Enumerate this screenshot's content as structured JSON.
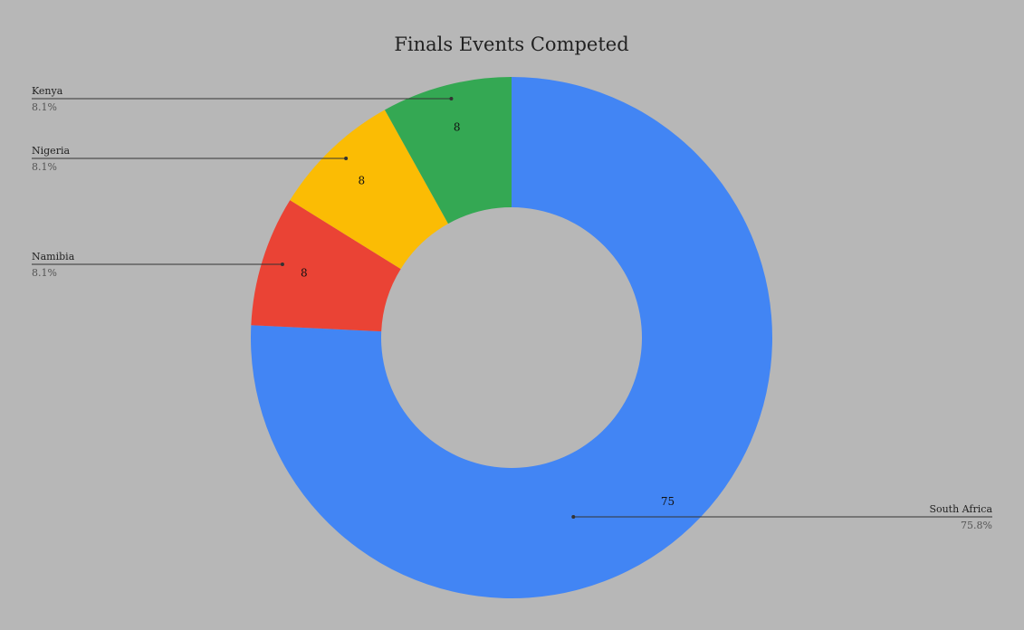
{
  "chart_data": {
    "type": "pie",
    "donut": true,
    "title": "Finals Events Competed",
    "categories": [
      "South Africa",
      "Namibia",
      "Nigeria",
      "Kenya"
    ],
    "values": [
      75,
      8,
      8,
      8
    ],
    "percent_labels": [
      "75.8%",
      "8.1%",
      "8.1%",
      "8.1%"
    ],
    "colors": [
      "#4285f4",
      "#ea4335",
      "#fbbc04",
      "#34a853"
    ],
    "background": "#b7b7b7",
    "legend": "labels with leader lines"
  }
}
